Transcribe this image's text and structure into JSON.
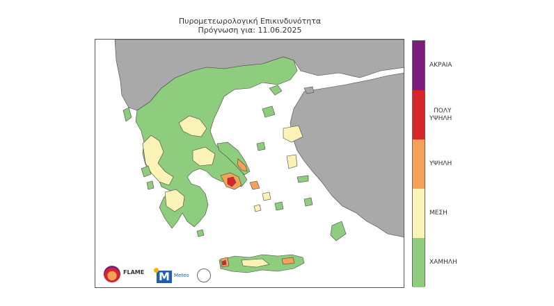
{
  "title": "Πυρομετεωρολογική Επικινδυνότητα",
  "subtitle": "Πρόγνωση για: 11.06.2025",
  "colors": {
    "sea": "#ffffff",
    "neighbor_land": "#a9a9a9",
    "border": "#444444",
    "low": "#8fcd7e",
    "medium": "#fbf2b5",
    "high": "#f6a15a",
    "very_high": "#d7262a",
    "extreme": "#7b1d7e"
  },
  "legend": [
    {
      "label": "ΑΚΡΑΙΑ",
      "level": "extreme"
    },
    {
      "label": "ΠΟΛΥ ΥΨΗΛΗ",
      "level": "very_high"
    },
    {
      "label": "ΥΨΗΛΗ",
      "level": "high"
    },
    {
      "label": "ΜΕΣΗ",
      "level": "medium"
    },
    {
      "label": "ΧΑΜΗΛΗ",
      "level": "low"
    }
  ],
  "legend_lines": {
    "extreme": [
      "ΑΚΡΑΙΑ"
    ],
    "very_high": [
      "ΠΟΛΥ",
      "ΥΨΗΛΗ"
    ],
    "high": [
      "ΥΨΗΛΗ"
    ],
    "medium": [
      "ΜΕΣΗ"
    ],
    "low": [
      "ΧΑΜΗΛΗ"
    ]
  },
  "logos": {
    "flame_text": "FLAME",
    "meteo_text": "Meteo"
  }
}
